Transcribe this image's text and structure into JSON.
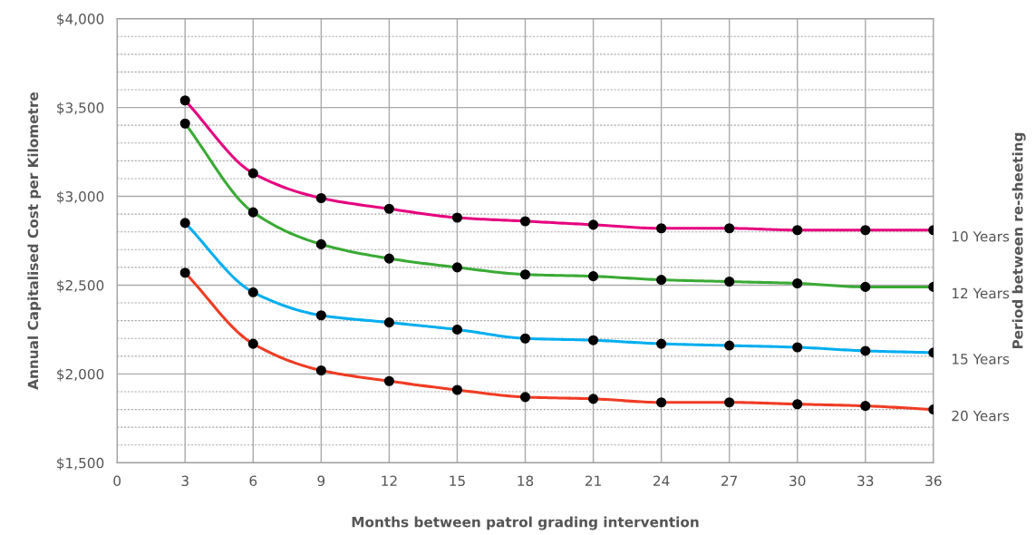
{
  "chart_data": {
    "type": "line",
    "xlabel": "Months between patrol grading intervention",
    "ylabel": "Annual Capitalised Cost per Kilometre",
    "annotations": [
      "Period between re-sheeting"
    ],
    "x": [
      3,
      6,
      9,
      12,
      15,
      18,
      21,
      24,
      27,
      30,
      33,
      36
    ],
    "series": [
      {
        "name": "10 Years",
        "color": "#e6007e",
        "values": [
          3540,
          3130,
          2990,
          2930,
          2880,
          2860,
          2840,
          2820,
          2820,
          2810,
          2810,
          2810
        ]
      },
      {
        "name": "12 Years",
        "color": "#3aaa35",
        "values": [
          3410,
          2910,
          2730,
          2650,
          2600,
          2560,
          2550,
          2530,
          2520,
          2510,
          2490,
          2490
        ]
      },
      {
        "name": "15 Years",
        "color": "#00aeef",
        "values": [
          2850,
          2460,
          2330,
          2290,
          2250,
          2200,
          2190,
          2170,
          2160,
          2150,
          2130,
          2120
        ]
      },
      {
        "name": "20 Years",
        "color": "#f03c24",
        "values": [
          2570,
          2170,
          2020,
          1960,
          1910,
          1870,
          1860,
          1840,
          1840,
          1830,
          1820,
          1800
        ]
      }
    ],
    "xlim": [
      0,
      36
    ],
    "xticks": [
      0,
      3,
      6,
      9,
      12,
      15,
      18,
      21,
      24,
      27,
      30,
      33,
      36
    ],
    "ylim": [
      1500,
      4000
    ],
    "yticks": [
      {
        "value": 1500,
        "label": "$1,500"
      },
      {
        "value": 2000,
        "label": "$2,000"
      },
      {
        "value": 2500,
        "label": "$2,500"
      },
      {
        "value": 3000,
        "label": "$3,000"
      },
      {
        "value": 3500,
        "label": "$3,500"
      },
      {
        "value": 4000,
        "label": "$4,000"
      }
    ],
    "grid": true,
    "marker": "circle",
    "line_style": "solid",
    "legend": false
  }
}
